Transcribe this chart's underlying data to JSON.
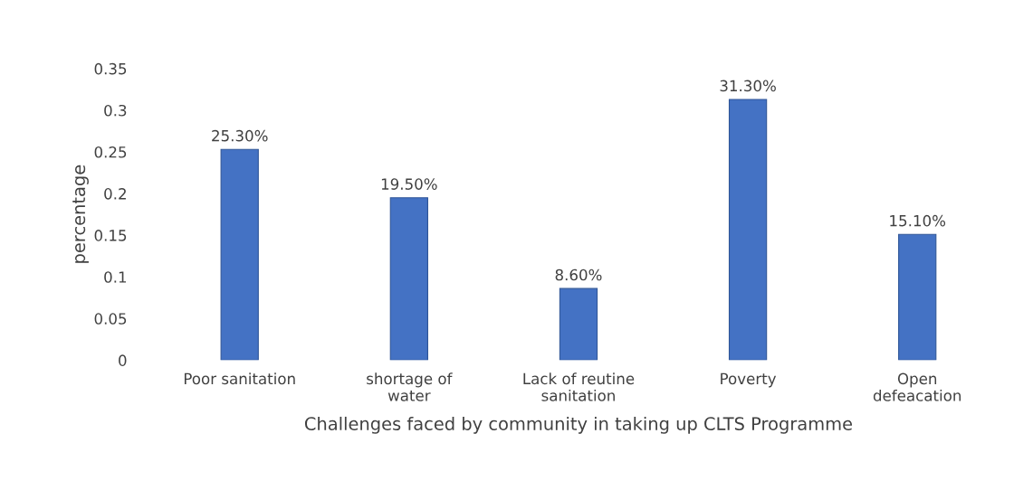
{
  "chart_data": {
    "type": "bar",
    "xlabel": "Challenges faced by community in taking up CLTS Programme",
    "ylabel": "percentage",
    "categories": [
      "Poor sanitation",
      "shortage of\nwater",
      "Lack of reutine\nsanitation",
      "Poverty",
      "Open\ndefeacation"
    ],
    "values": [
      0.253,
      0.195,
      0.086,
      0.313,
      0.151
    ],
    "value_labels": [
      "25.30%",
      "19.50%",
      "8.60%",
      "31.30%",
      "15.10%"
    ],
    "color": "#4472c4",
    "ylim": [
      0,
      0.35
    ],
    "yticks": [
      0,
      0.05,
      0.1,
      0.15,
      0.2,
      0.25,
      0.3,
      0.35
    ],
    "grid": false
  }
}
